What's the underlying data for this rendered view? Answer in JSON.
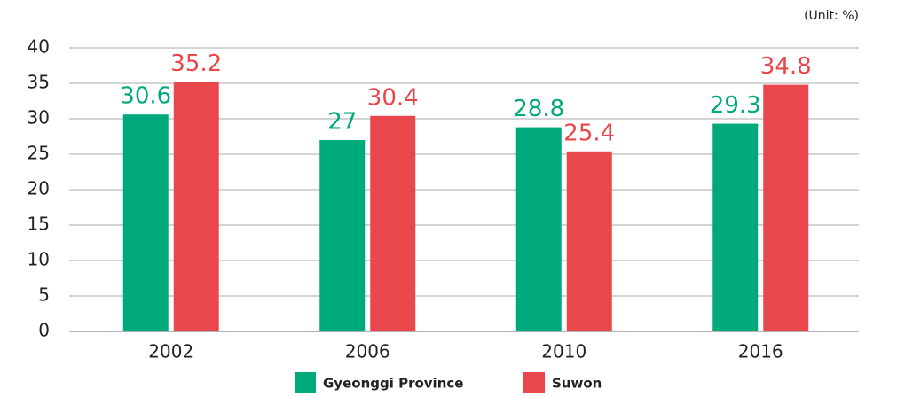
{
  "chart_data": {
    "type": "bar",
    "unit_label": "(Unit: %)",
    "categories": [
      "2002",
      "2006",
      "2010",
      "2016"
    ],
    "series": [
      {
        "name": "Gyeonggi Province",
        "color": "#00a97a",
        "values": [
          30.6,
          27,
          28.8,
          29.3
        ]
      },
      {
        "name": "Suwon",
        "color": "#e9474b",
        "values": [
          35.2,
          30.4,
          25.4,
          34.8
        ]
      }
    ],
    "ylim": [
      0,
      40
    ],
    "yticks": [
      0,
      5,
      10,
      15,
      20,
      25,
      30,
      35,
      40
    ],
    "grid": true,
    "legend": "bottom"
  }
}
